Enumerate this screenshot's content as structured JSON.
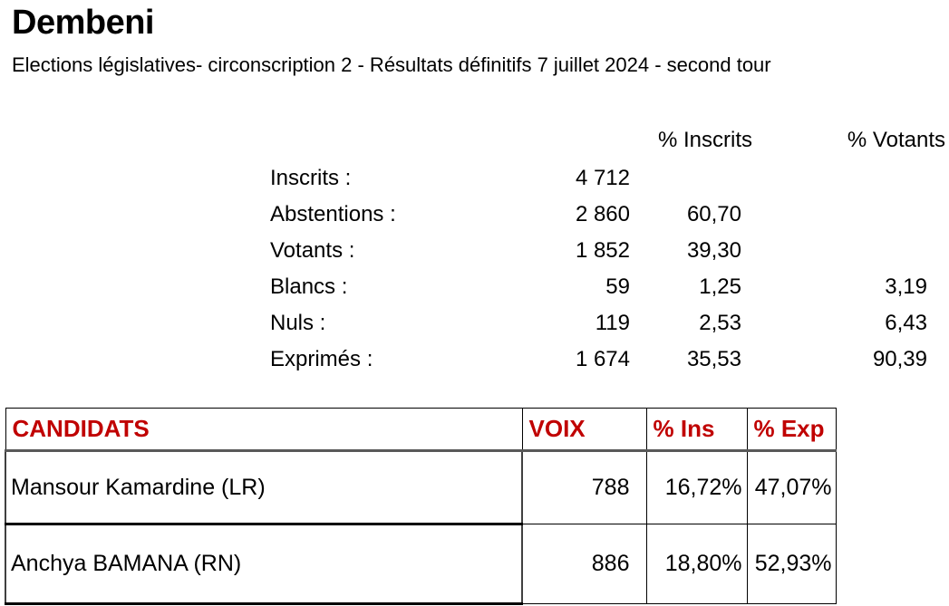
{
  "title": "Dembeni",
  "subtitle": "Elections législatives- circonscription 2 - Résultats définitifs 7 juillet 2024 - second tour",
  "summary": {
    "col_headers": [
      "% Inscrits",
      "% Votants"
    ],
    "rows": [
      {
        "label": "Inscrits :",
        "value": "4 712",
        "pct_inscrits": "",
        "pct_votants": ""
      },
      {
        "label": "Abstentions :",
        "value": "2 860",
        "pct_inscrits": "60,70",
        "pct_votants": ""
      },
      {
        "label": "Votants :",
        "value": "1 852",
        "pct_inscrits": "39,30",
        "pct_votants": ""
      },
      {
        "label": "Blancs :",
        "value": "59",
        "pct_inscrits": "1,25",
        "pct_votants": "3,19"
      },
      {
        "label": "Nuls :",
        "value": "119",
        "pct_inscrits": "2,53",
        "pct_votants": "6,43"
      },
      {
        "label": "Exprimés :",
        "value": "1 674",
        "pct_inscrits": "35,53",
        "pct_votants": "90,39"
      }
    ]
  },
  "results_table": {
    "headers": [
      "CANDIDATS",
      "VOIX",
      "% Ins",
      "% Exp"
    ],
    "rows": [
      {
        "candidate": "Mansour Kamardine (LR)",
        "voix": "788",
        "pct_ins": "16,72%",
        "pct_exp": "47,07%"
      },
      {
        "candidate": "Anchya BAMANA (RN)",
        "voix": "886",
        "pct_ins": "18,80%",
        "pct_exp": "52,93%"
      }
    ]
  },
  "colors": {
    "header_red": "#C00000",
    "text": "#000000",
    "border_black": "#000000",
    "border_gray": "#595959"
  }
}
